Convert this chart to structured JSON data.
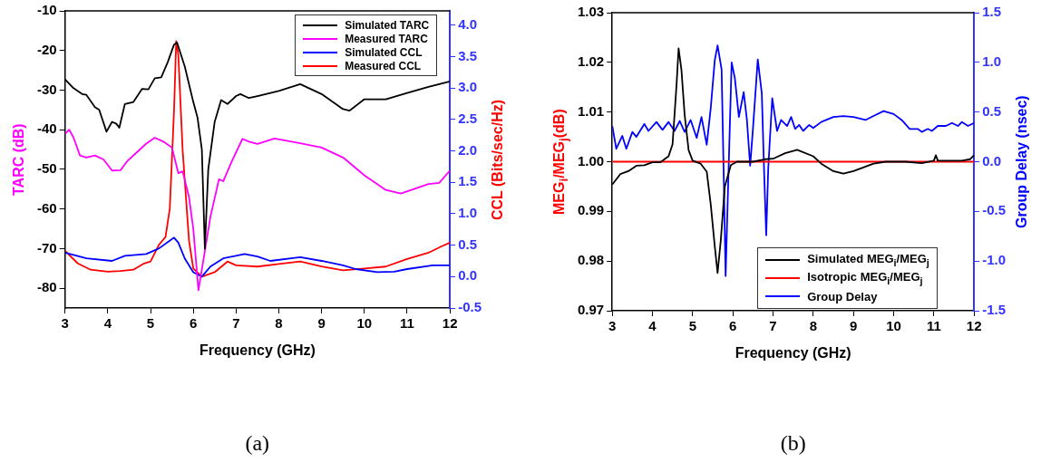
{
  "chart_data": [
    {
      "type": "line",
      "xlabel": "Frequency (GHz)",
      "ylabel": "TARC (dB)",
      "y2label": "CCL (Bits/sec/Hz)",
      "annotations": [
        "(a)"
      ],
      "legend": "top right",
      "grid": false,
      "marker": "none",
      "xlim": [
        3,
        12
      ],
      "xticks": [
        3,
        4,
        5,
        6,
        7,
        8,
        9,
        10,
        11,
        12
      ],
      "ylim": [
        -85,
        -10
      ],
      "yticks": [
        -80,
        -70,
        -60,
        -50,
        -40,
        -30,
        -20,
        -10
      ],
      "y2lim": [
        -0.5,
        4.23
      ],
      "y2ticks": [
        -0.5,
        {
          "value": 0,
          "label": "0.0"
        },
        0.5,
        {
          "value": 1,
          "label": "1.0"
        },
        1.5,
        {
          "value": 2,
          "label": "2.0"
        },
        2.5,
        {
          "value": 3,
          "label": "3.0"
        },
        3.5,
        {
          "value": 4,
          "label": "4.0"
        }
      ],
      "series": [
        {
          "name": "Simulated  TARC",
          "color": "#000000",
          "x": [
            3,
            3.2,
            3.4,
            3.5,
            3.7,
            3.8,
            3.97,
            4.1,
            4.2,
            4.27,
            4.4,
            4.6,
            4.8,
            4.95,
            5.1,
            5.25,
            5.4,
            5.55,
            5.62,
            5.8,
            6,
            6.1,
            6.2,
            6.27,
            6.35,
            6.5,
            6.65,
            6.8,
            7,
            7.1,
            7.3,
            7.5,
            8,
            8.5,
            9,
            9.5,
            9.65,
            10,
            10.5,
            11,
            11.5,
            12
          ],
          "values": [
            -27.3,
            -29.5,
            -31,
            -31.2,
            -34.3,
            -35,
            -40.5,
            -38,
            -38.5,
            -39.5,
            -33.5,
            -33,
            -29.7,
            -29.8,
            -27,
            -26.8,
            -23,
            -18.5,
            -18,
            -24,
            -33,
            -37,
            -45,
            -70,
            -50,
            -38,
            -32.5,
            -33.5,
            -31.5,
            -31,
            -32,
            -31.5,
            -30.2,
            -28.5,
            -31,
            -34.8,
            -35.2,
            -32.3,
            -32.3,
            -30.7,
            -29.2,
            -27.8
          ]
        },
        {
          "name": "Measured TARC",
          "color": "#ff00ff",
          "x": [
            3,
            3.1,
            3.2,
            3.35,
            3.5,
            3.7,
            3.9,
            4.1,
            4.3,
            4.45,
            4.7,
            4.9,
            5.1,
            5.3,
            5.5,
            5.65,
            5.75,
            5.9,
            6,
            6.12,
            6.25,
            6.4,
            6.6,
            6.7,
            6.9,
            7.15,
            7.3,
            7.5,
            7.9,
            8.5,
            9,
            9.5,
            10,
            10.5,
            10.85,
            11.5,
            11.75,
            12
          ],
          "values": [
            -41,
            -40,
            -42,
            -46.5,
            -47,
            -46.5,
            -47.5,
            -50.3,
            -50.2,
            -48,
            -45.5,
            -43.5,
            -42,
            -43,
            -44.5,
            -51,
            -50.5,
            -57,
            -65,
            -80.5,
            -72,
            -62,
            -52.5,
            -53,
            -48,
            -42.3,
            -43,
            -43.6,
            -42.2,
            -43.4,
            -44.5,
            -47,
            -51.5,
            -55.2,
            -56.1,
            -53.7,
            -53.4,
            -50.3
          ]
        },
        {
          "name": "Simulated CCL",
          "color": "#0000ff",
          "axis": "y2",
          "x": [
            3,
            3.5,
            4.1,
            4.4,
            4.9,
            5.2,
            5.55,
            5.65,
            5.8,
            6,
            6.2,
            6.4,
            6.7,
            7.2,
            7.5,
            7.8,
            8.5,
            9,
            9.5,
            9.8,
            10.3,
            10.7,
            11,
            11.6,
            12
          ],
          "values": [
            0.38,
            0.29,
            0.25,
            0.33,
            0.36,
            0.45,
            0.62,
            0.54,
            0.29,
            0.07,
            0,
            0.16,
            0.29,
            0.36,
            0.32,
            0.25,
            0.31,
            0.25,
            0.18,
            0.12,
            0.07,
            0.08,
            0.12,
            0.18,
            0.18
          ]
        },
        {
          "name": "Measured  CCL",
          "color": "#ff0000",
          "axis": "y2",
          "x": [
            3,
            3.3,
            3.6,
            4,
            4.3,
            4.6,
            4.85,
            5,
            5.2,
            5.35,
            5.45,
            5.55,
            5.6,
            5.65,
            5.75,
            5.9,
            6,
            6.2,
            6.5,
            6.8,
            7,
            7.5,
            8,
            8.5,
            9,
            9.5,
            10,
            10.5,
            11,
            11.5,
            11.8,
            12
          ],
          "values": [
            0.41,
            0.21,
            0.11,
            0.08,
            0.09,
            0.11,
            0.21,
            0.24,
            0.51,
            0.63,
            1.08,
            2.65,
            3.75,
            3.53,
            2.02,
            0.57,
            0.13,
            0,
            0.07,
            0.24,
            0.18,
            0.16,
            0.2,
            0.24,
            0.16,
            0.1,
            0.13,
            0.16,
            0.28,
            0.38,
            0.48,
            0.54
          ]
        }
      ]
    },
    {
      "type": "line",
      "xlabel": "Frequency (GHz)",
      "ylabel": "MEG$_{i}$/MEG$_{j}$(dB)",
      "y2label": "Group Delay (nsec)",
      "annotations": [
        "(b)"
      ],
      "legend": "bottom right",
      "grid": false,
      "marker": "none",
      "xlim": [
        3,
        12
      ],
      "xticks": [
        3,
        4,
        5,
        6,
        7,
        8,
        9,
        10,
        11,
        12
      ],
      "ylim": [
        0.97,
        1.03
      ],
      "yticks": [
        0.97,
        0.98,
        0.99,
        {
          "value": 1,
          "label": "1.00"
        },
        1.01,
        1.02,
        1.03
      ],
      "y2lim": [
        -1.5,
        1.5
      ],
      "y2ticks": [
        -1.5,
        {
          "value": -1,
          "label": "-1.0"
        },
        -0.5,
        {
          "value": 0,
          "label": "0.0"
        },
        0.5,
        {
          "value": 1,
          "label": "1.0"
        },
        1.5
      ],
      "series": [
        {
          "name": "Simulated MEG$_{i}$/MEG$_{j}$",
          "color": "#000000",
          "x": [
            3,
            3.2,
            3.4,
            3.6,
            3.8,
            4,
            4.2,
            4.4,
            4.5,
            4.6,
            4.65,
            4.72,
            4.8,
            4.9,
            5,
            5.2,
            5.35,
            5.45,
            5.55,
            5.62,
            5.7,
            5.8,
            5.95,
            6.1,
            6.5,
            6.8,
            7,
            7.3,
            7.6,
            8,
            8.2,
            8.5,
            8.75,
            9,
            9.5,
            9.8,
            10.3,
            10.7,
            11,
            11.05,
            11.1,
            11.7,
            11.9,
            12
          ],
          "values": [
            0.9954,
            0.9975,
            0.9981,
            0.9992,
            0.9993,
            0.9999,
            0.9999,
            1.0011,
            1.0035,
            1.0156,
            1.0228,
            1.0186,
            1.0095,
            1.0023,
            1.0002,
            0.9996,
            0.998,
            0.9914,
            0.983,
            0.9776,
            0.9842,
            0.995,
            0.9993,
            1,
            1,
            1.0005,
            1.0006,
            1.0017,
            1.0024,
            1.0011,
            0.9996,
            0.9981,
            0.9976,
            0.9981,
            0.9996,
            1,
            1,
            0.9997,
            1.0002,
            1.0013,
            1.0002,
            1.0002,
            1.0005,
            1.0013
          ]
        },
        {
          "name": "Isotropic MEG$_{i}$/MEG$_{j}$",
          "color": "#ff0000",
          "x": [
            3,
            12
          ],
          "values": [
            1,
            1
          ]
        },
        {
          "name": "Group Delay",
          "color": "#0000ff",
          "axis": "y2",
          "x": [
            3,
            3.1,
            3.25,
            3.35,
            3.5,
            3.6,
            3.8,
            3.9,
            4.1,
            4.25,
            4.4,
            4.55,
            4.68,
            4.8,
            4.95,
            5.1,
            5.22,
            5.35,
            5.45,
            5.55,
            5.62,
            5.72,
            5.78,
            5.82,
            5.88,
            5.97,
            6.05,
            6.15,
            6.27,
            6.35,
            6.43,
            6.5,
            6.62,
            6.72,
            6.78,
            6.83,
            6.88,
            6.98,
            7.1,
            7.2,
            7.35,
            7.45,
            7.55,
            7.65,
            7.75,
            7.9,
            8,
            8.2,
            8.5,
            8.75,
            9,
            9.3,
            9.5,
            9.75,
            10,
            10.2,
            10.4,
            10.6,
            10.7,
            10.85,
            10.95,
            11.1,
            11.3,
            11.45,
            11.6,
            11.7,
            11.85,
            12
          ],
          "values": [
            0.36,
            0.13,
            0.26,
            0.13,
            0.3,
            0.25,
            0.38,
            0.31,
            0.4,
            0.32,
            0.4,
            0.31,
            0.41,
            0.3,
            0.42,
            0.24,
            0.45,
            0.17,
            0.54,
            1.02,
            1.17,
            0.93,
            -0.28,
            -1.15,
            -0.28,
            1,
            0.84,
            0.45,
            0.7,
            0.42,
            -0.04,
            0.33,
            1.03,
            0.69,
            -0.13,
            -0.74,
            -0.07,
            0.64,
            0.31,
            0.42,
            0.36,
            0.45,
            0.33,
            0.37,
            0.31,
            0.37,
            0.34,
            0.4,
            0.45,
            0.46,
            0.45,
            0.42,
            0.46,
            0.51,
            0.48,
            0.42,
            0.33,
            0.33,
            0.3,
            0.33,
            0.31,
            0.36,
            0.36,
            0.39,
            0.36,
            0.4,
            0.36,
            0.39
          ]
        }
      ]
    }
  ]
}
